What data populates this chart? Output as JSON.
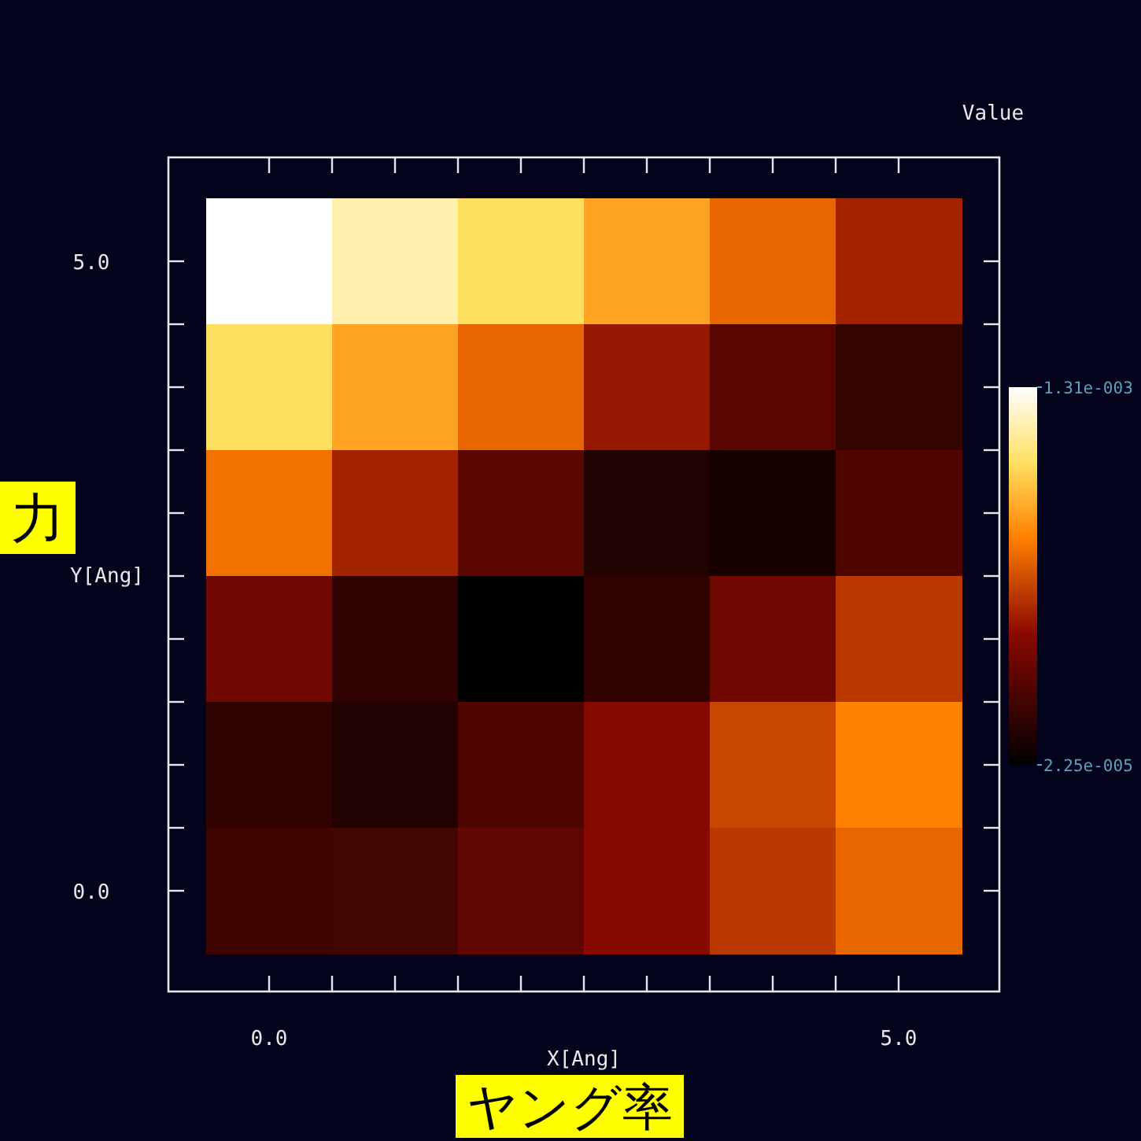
{
  "chart_data": {
    "type": "heatmap",
    "xlabel": "X[Ang]",
    "ylabel": "Y[Ang]",
    "clabel": "Value",
    "categories": [
      "0.0",
      null,
      null,
      null,
      null,
      "5.0"
    ],
    "y_categories": [
      "5.0",
      null,
      null,
      null,
      null,
      "0.0"
    ],
    "cells": [
      [
        0.00131,
        0.00118,
        0.00105,
        0.00089,
        0.00073,
        0.00054
      ],
      [
        0.00105,
        0.00089,
        0.00073,
        0.00051,
        0.00031,
        0.00019
      ],
      [
        0.00076,
        0.00054,
        0.00032,
        0.00013,
        0.0001,
        0.00028
      ],
      [
        0.00038,
        0.00018,
        2.25e-05,
        0.00018,
        0.00038,
        0.0006
      ],
      [
        0.00018,
        0.00013,
        0.00028,
        0.00045,
        0.00064,
        0.0008
      ],
      [
        0.00022,
        0.00024,
        0.00033,
        0.00046,
        0.0006,
        0.00073
      ]
    ],
    "clim": [
      2.25e-05,
      0.00131
    ],
    "cticks": [
      {
        "value": 0.00131,
        "label": "1.31e-003"
      },
      {
        "value": 2.25e-05,
        "label": "2.25e-005"
      }
    ],
    "annotations": [
      "力",
      "ヤング率"
    ]
  }
}
